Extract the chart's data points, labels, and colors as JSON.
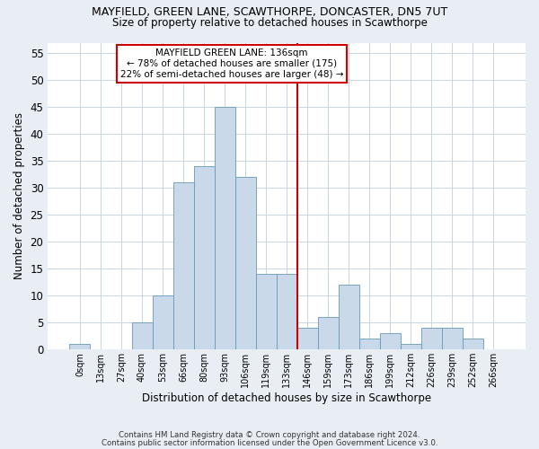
{
  "title_line1": "MAYFIELD, GREEN LANE, SCAWTHORPE, DONCASTER, DN5 7UT",
  "title_line2": "Size of property relative to detached houses in Scawthorpe",
  "xlabel": "Distribution of detached houses by size in Scawthorpe",
  "ylabel": "Number of detached properties",
  "bar_labels": [
    "0sqm",
    "13sqm",
    "27sqm",
    "40sqm",
    "53sqm",
    "66sqm",
    "80sqm",
    "93sqm",
    "106sqm",
    "119sqm",
    "133sqm",
    "146sqm",
    "159sqm",
    "173sqm",
    "186sqm",
    "199sqm",
    "212sqm",
    "226sqm",
    "239sqm",
    "252sqm",
    "266sqm"
  ],
  "bar_values": [
    1,
    0,
    0,
    5,
    10,
    31,
    34,
    45,
    32,
    14,
    14,
    4,
    6,
    12,
    2,
    3,
    1,
    4,
    4,
    2,
    0
  ],
  "bar_color": "#c9d9ea",
  "bar_edge_color": "#6699bb",
  "bar_width": 1.0,
  "vline_x": 10.5,
  "vline_color": "#cc0000",
  "ylim": [
    0,
    57
  ],
  "yticks": [
    0,
    5,
    10,
    15,
    20,
    25,
    30,
    35,
    40,
    45,
    50,
    55
  ],
  "annotation_title": "MAYFIELD GREEN LANE: 136sqm",
  "annotation_line1": "← 78% of detached houses are smaller (175)",
  "annotation_line2": "22% of semi-detached houses are larger (48) →",
  "annotation_box_color": "#ffffff",
  "annotation_box_edge": "#cc0000",
  "footnote1": "Contains HM Land Registry data © Crown copyright and database right 2024.",
  "footnote2": "Contains public sector information licensed under the Open Government Licence v3.0.",
  "bg_color": "#e8eef4",
  "plot_bg_color": "#ffffff",
  "grid_color": "#c8d4de"
}
